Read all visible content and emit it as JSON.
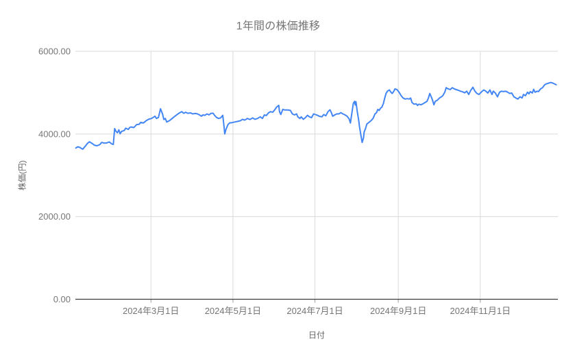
{
  "chart": {
    "title": "1年間の株価推移",
    "x_axis_title": "日付",
    "y_axis_title": "株価(円)",
    "colors": {
      "line": "#4285f4",
      "grid": "#dadada",
      "axis": "#3c3c3c",
      "tick": "#999999",
      "label": "#757575",
      "title": "#757575",
      "axis_title": "#666666",
      "background": "#ffffff"
    },
    "chart_data": {
      "type": "line",
      "title": "1年間の株価推移",
      "xlabel": "日付",
      "ylabel": "株価(円)",
      "grid": true,
      "legend": "none",
      "y_domain": [
        0,
        6000
      ],
      "x_domain_days": [
        3.8,
        362.7
      ],
      "y_ticks": [
        {
          "value": 0,
          "label": "0.00"
        },
        {
          "value": 2000,
          "label": "2000.00"
        },
        {
          "value": 4000,
          "label": "4000.00"
        },
        {
          "value": 6000,
          "label": "6000.00"
        }
      ],
      "x_ticks": [
        {
          "day": 60,
          "label": "2024年3月1日"
        },
        {
          "day": 121,
          "label": "2024年5月1日"
        },
        {
          "day": 182,
          "label": "2024年7月1日"
        },
        {
          "day": 244,
          "label": "2024年9月1日"
        },
        {
          "day": 305,
          "label": "2024年11月1日"
        }
      ],
      "x_unit": "days since 2024-01-01",
      "series": [
        {
          "name": "株価",
          "color": "#4285f4",
          "days": [
            4.1,
            5.6,
            7.1,
            9.2,
            11.2,
            12.7,
            14.2,
            16.3,
            17.8,
            19.8,
            21.9,
            23.4,
            24.9,
            26.9,
            29,
            31,
            32,
            33,
            34.1,
            35.1,
            36.1,
            37.1,
            38.1,
            40.2,
            41.2,
            43.2,
            44.2,
            45.2,
            47.3,
            49.3,
            51.3,
            52.4,
            54.4,
            56.4,
            58.5,
            60.5,
            63,
            64.1,
            65.6,
            67.1,
            68.6,
            69.6,
            70.7,
            71.7,
            73.7,
            75.8,
            77.8,
            79.3,
            81.3,
            82.9,
            84.4,
            85.9,
            87.4,
            89.5,
            91,
            93,
            94.6,
            96.1,
            97.6,
            98.6,
            100.2,
            101.7,
            103.2,
            104.7,
            106.3,
            107.3,
            108.8,
            110.3,
            111.9,
            113.4,
            114.4,
            114.9,
            115.9,
            117.4,
            118.5,
            120.5,
            122.5,
            124.6,
            126.6,
            128.1,
            129.6,
            131.7,
            133.7,
            135.7,
            137.3,
            139.3,
            141.3,
            142.9,
            144.4,
            145.9,
            147.4,
            149,
            150.5,
            152,
            153.5,
            155.1,
            155.6,
            156.6,
            158.1,
            159.6,
            161.7,
            163.7,
            165.2,
            166.8,
            168.3,
            169.3,
            170.8,
            171.8,
            173.4,
            174.9,
            176.4,
            177.9,
            179.5,
            181,
            183,
            184,
            185.1,
            187.1,
            188.6,
            190.1,
            191.7,
            193.2,
            194.2,
            195.2,
            196.7,
            198.3,
            199.8,
            201.3,
            202.8,
            204.4,
            205.9,
            207.4,
            208.4,
            210.5,
            211.5,
            212,
            212.5,
            213.5,
            214.6,
            215.1,
            216.1,
            217.1,
            218.1,
            218.6,
            219.6,
            220.6,
            222.2,
            223.7,
            225.2,
            226.7,
            227.8,
            228.8,
            229.8,
            230.8,
            231.8,
            232.9,
            233.9,
            234.9,
            235.9,
            237.4,
            238.5,
            239.5,
            240.5,
            241.5,
            243,
            244.6,
            246.1,
            247.6,
            249.1,
            250.7,
            252.2,
            253.2,
            254.2,
            255.7,
            257.3,
            258.3,
            259.3,
            260.8,
            262.4,
            263.9,
            265.4,
            266.4,
            267.4,
            268.5,
            269.5,
            270.5,
            271.5,
            273,
            274.6,
            276.1,
            277.1,
            278.6,
            279.6,
            281.2,
            282.7,
            284.2,
            285.7,
            287.8,
            288.8,
            290.3,
            291.8,
            293.4,
            294.9,
            296.4,
            297.9,
            299.5,
            301,
            302.5,
            304,
            306.1,
            307.6,
            309.1,
            310.6,
            312.2,
            313.7,
            314.7,
            316.2,
            317.8,
            319.3,
            320.8,
            322.3,
            323.9,
            325.4,
            326.9,
            328.4,
            330,
            331.5,
            333,
            334.5,
            336.1,
            337.1,
            338.6,
            340.1,
            341.2,
            342.2,
            343.7,
            344.7,
            345.7,
            347.3,
            348.3,
            349.8,
            351.3,
            352.9,
            354.4,
            355.9,
            357.4,
            359,
            360.5,
            361.5
          ],
          "values": [
            3660,
            3690,
            3675,
            3630,
            3705,
            3770,
            3810,
            3770,
            3730,
            3715,
            3740,
            3795,
            3780,
            3780,
            3805,
            3755,
            3745,
            4130,
            4060,
            4030,
            4100,
            4005,
            4060,
            4085,
            4140,
            4110,
            4155,
            4170,
            4155,
            4225,
            4235,
            4280,
            4265,
            4320,
            4360,
            4375,
            4430,
            4375,
            4400,
            4610,
            4485,
            4350,
            4375,
            4290,
            4320,
            4375,
            4430,
            4465,
            4510,
            4540,
            4500,
            4525,
            4500,
            4510,
            4485,
            4495,
            4485,
            4460,
            4430,
            4460,
            4450,
            4485,
            4460,
            4500,
            4500,
            4450,
            4400,
            4375,
            4390,
            4450,
            4180,
            4000,
            4120,
            4230,
            4265,
            4275,
            4290,
            4305,
            4320,
            4355,
            4335,
            4375,
            4350,
            4390,
            4355,
            4375,
            4415,
            4375,
            4460,
            4445,
            4510,
            4540,
            4525,
            4580,
            4650,
            4690,
            4540,
            4470,
            4595,
            4580,
            4580,
            4570,
            4485,
            4460,
            4485,
            4415,
            4375,
            4415,
            4355,
            4395,
            4450,
            4415,
            4395,
            4485,
            4460,
            4450,
            4430,
            4415,
            4470,
            4440,
            4540,
            4585,
            4515,
            4430,
            4460,
            4485,
            4485,
            4515,
            4485,
            4460,
            4430,
            4365,
            4265,
            4735,
            4790,
            4700,
            4780,
            4540,
            4320,
            4180,
            3990,
            3795,
            3905,
            4045,
            4130,
            4240,
            4280,
            4320,
            4375,
            4485,
            4515,
            4595,
            4570,
            4625,
            4650,
            4735,
            4870,
            4980,
            5035,
            5065,
            5010,
            4980,
            5025,
            5090,
            5075,
            5010,
            4925,
            4870,
            4845,
            4855,
            4845,
            4870,
            4760,
            4720,
            4730,
            4690,
            4720,
            4705,
            4730,
            4760,
            4790,
            4870,
            4980,
            4900,
            4815,
            4705,
            4790,
            4815,
            4870,
            4900,
            4925,
            5010,
            5120,
            5090,
            5075,
            5120,
            5090,
            5065,
            5055,
            5035,
            5020,
            4995,
            5035,
            4955,
            5055,
            5130,
            5035,
            4980,
            4955,
            5025,
            5065,
            5035,
            4990,
            5065,
            4955,
            5035,
            4990,
            4900,
            5010,
            5035,
            5025,
            5035,
            5010,
            4980,
            4990,
            4900,
            4870,
            4845,
            4900,
            4870,
            4955,
            4925,
            5010,
            4970,
            5025,
            4990,
            5080,
            5010,
            5035,
            5025,
            5090,
            5120,
            5190,
            5215,
            5230,
            5245,
            5230,
            5205,
            5190
          ]
        }
      ]
    }
  }
}
